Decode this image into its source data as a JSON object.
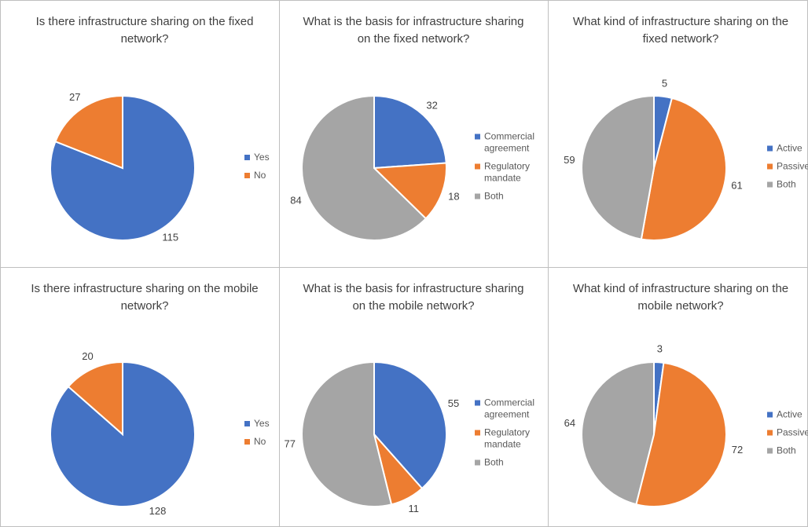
{
  "chart_data": [
    {
      "type": "pie",
      "title": "Is there infrastructure sharing on the fixed network?",
      "categories": [
        "Yes",
        "No"
      ],
      "values": [
        115,
        27
      ],
      "colors": [
        "#4472c4",
        "#ed7d31"
      ],
      "legend": "right"
    },
    {
      "type": "pie",
      "title": "What is the basis for infrastructure sharing  on the fixed network?",
      "categories": [
        "Commercial agreement",
        "Regulatory mandate",
        "Both"
      ],
      "values": [
        32,
        18,
        84
      ],
      "colors": [
        "#4472c4",
        "#ed7d31",
        "#a5a5a5"
      ],
      "legend": "right"
    },
    {
      "type": "pie",
      "title": "What kind of infrastructure sharing on the fixed network?",
      "categories": [
        "Active",
        "Passive",
        "Both"
      ],
      "values": [
        5,
        61,
        59
      ],
      "colors": [
        "#4472c4",
        "#ed7d31",
        "#a5a5a5"
      ],
      "legend": "right"
    },
    {
      "type": "pie",
      "title": "Is there infrastructure sharing on the mobile network?",
      "categories": [
        "Yes",
        "No"
      ],
      "values": [
        128,
        20
      ],
      "colors": [
        "#4472c4",
        "#ed7d31"
      ],
      "legend": "right"
    },
    {
      "type": "pie",
      "title": "What is the basis for infrastructure sharing  on the mobile network?",
      "categories": [
        "Commercial agreement",
        "Regulatory mandate",
        "Both"
      ],
      "values": [
        55,
        11,
        77
      ],
      "colors": [
        "#4472c4",
        "#ed7d31",
        "#a5a5a5"
      ],
      "legend": "right"
    },
    {
      "type": "pie",
      "title": "What kind of infrastructure sharing on the mobile network?",
      "categories": [
        "Active",
        "Passive",
        "Both"
      ],
      "values": [
        3,
        72,
        64
      ],
      "colors": [
        "#4472c4",
        "#ed7d31",
        "#a5a5a5"
      ],
      "legend": "right"
    }
  ]
}
